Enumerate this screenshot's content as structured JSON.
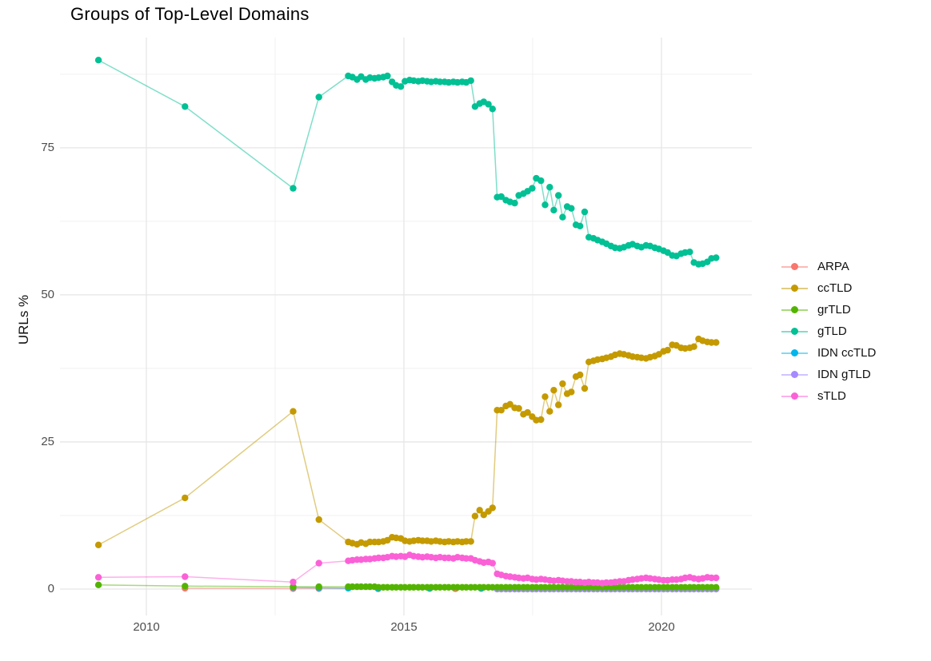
{
  "title": "Groups of Top-Level Domains",
  "y_axis": {
    "label": "URLs %",
    "tick_labels": [
      "0",
      "25",
      "50",
      "75"
    ]
  },
  "x_axis": {
    "tick_labels": [
      "2010",
      "2015",
      "2020"
    ]
  },
  "legend": {
    "position": "right",
    "items": [
      "ARPA",
      "ccTLD",
      "grTLD",
      "gTLD",
      "IDN ccTLD",
      "IDN gTLD",
      "sTLD"
    ]
  },
  "chart_data": {
    "type": "line",
    "title": "Groups of Top-Level Domains",
    "xlabel": "",
    "ylabel": "URLs %",
    "xlim": [
      2008.3,
      2021.75
    ],
    "ylim": [
      -4.5,
      93.7
    ],
    "grid": true,
    "legend_position": "right",
    "x_major_ticks": [
      2010,
      2015,
      2020
    ],
    "x_minor_gridlines": [
      2012.5,
      2017.5
    ],
    "y_major_ticks": [
      0,
      25,
      50,
      75
    ],
    "y_minor_gridlines": [
      12.5,
      37.5,
      62.5,
      87.5
    ],
    "x_sparse": [
      2009.07,
      2010.75,
      2012.85,
      2013.35
    ],
    "x_dense": [
      2013.92,
      2014.0,
      2014.09,
      2014.17,
      2014.26,
      2014.34,
      2014.43,
      2014.51,
      2014.6,
      2014.68,
      2014.77,
      2014.85,
      2014.94,
      2015.02,
      2015.11,
      2015.19,
      2015.28,
      2015.36,
      2015.45,
      2015.53,
      2015.62,
      2015.7,
      2015.79,
      2015.87,
      2015.96,
      2016.04,
      2016.13,
      2016.21,
      2016.3,
      2016.38,
      2016.47,
      2016.55,
      2016.64,
      2016.72,
      2016.81,
      2016.89,
      2016.98,
      2017.06,
      2017.15,
      2017.23,
      2017.32,
      2017.4,
      2017.49,
      2017.57,
      2017.66,
      2017.74,
      2017.83,
      2017.91,
      2018.0,
      2018.08,
      2018.17,
      2018.25,
      2018.34,
      2018.42,
      2018.51,
      2018.59,
      2018.68,
      2018.76,
      2018.85,
      2018.93,
      2019.02,
      2019.1,
      2019.19,
      2019.27,
      2019.36,
      2019.44,
      2019.53,
      2019.61,
      2019.7,
      2019.78,
      2019.87,
      2019.95,
      2020.04,
      2020.12,
      2020.21,
      2020.29,
      2020.38,
      2020.46,
      2020.55,
      2020.63,
      2020.72,
      2020.8,
      2020.89,
      2020.97,
      2021.06
    ],
    "draw_order": [
      "ARPA",
      "IDN ccTLD",
      "IDN gTLD",
      "grTLD",
      "ccTLD",
      "gTLD",
      "sTLD"
    ],
    "series": [
      {
        "name": "ARPA",
        "color": "#F8766D",
        "x": [
          2010.75,
          2012.85,
          2013.35,
          2014.5,
          2016.0,
          2017.5,
          2019.0,
          2021.06
        ],
        "y": [
          0.15,
          0.08,
          0.08,
          0.05,
          0.05,
          0.05,
          0.05,
          0.05
        ]
      },
      {
        "name": "ccTLD",
        "color": "#C49A00",
        "y_sparse": [
          7.5,
          15.5,
          30.2,
          11.8
        ],
        "y_dense": [
          8.0,
          7.8,
          7.6,
          7.9,
          7.7,
          8.0,
          8.0,
          8.0,
          8.1,
          8.3,
          8.8,
          8.7,
          8.6,
          8.2,
          8.1,
          8.2,
          8.3,
          8.2,
          8.2,
          8.1,
          8.2,
          8.1,
          8.0,
          8.1,
          8.0,
          8.1,
          8.0,
          8.1,
          8.1,
          12.4,
          13.4,
          12.6,
          13.2,
          13.8,
          30.4,
          30.4,
          31.1,
          31.4,
          30.8,
          30.7,
          29.7,
          30.0,
          29.3,
          28.7,
          28.8,
          32.7,
          30.2,
          33.8,
          31.3,
          34.9,
          33.2,
          33.5,
          36.1,
          36.4,
          34.1,
          38.6,
          38.8,
          39.0,
          39.1,
          39.3,
          39.5,
          39.8,
          40.0,
          39.9,
          39.7,
          39.5,
          39.4,
          39.3,
          39.2,
          39.4,
          39.6,
          39.9,
          40.4,
          40.6,
          41.5,
          41.4,
          41.0,
          40.9,
          41.0,
          41.2,
          42.5,
          42.2,
          42.0,
          41.9,
          41.9
        ]
      },
      {
        "name": "grTLD",
        "color": "#53B400",
        "y_sparse": [
          0.7,
          0.5,
          0.4,
          0.4
        ],
        "y_dense": [
          0.4,
          0.4,
          0.4,
          0.4,
          0.4,
          0.4,
          0.4,
          0.3,
          0.3,
          0.3,
          0.3,
          0.3,
          0.3,
          0.3,
          0.3,
          0.3,
          0.3,
          0.3,
          0.3,
          0.3,
          0.3,
          0.3,
          0.3,
          0.3,
          0.3,
          0.3,
          0.3,
          0.3,
          0.3,
          0.3,
          0.3,
          0.3,
          0.3,
          0.3,
          0.3,
          0.3,
          0.3,
          0.3,
          0.3,
          0.3,
          0.3,
          0.3,
          0.3,
          0.3,
          0.3,
          0.3,
          0.3,
          0.3,
          0.3,
          0.3,
          0.3,
          0.3,
          0.3,
          0.3,
          0.3,
          0.3,
          0.3,
          0.3,
          0.3,
          0.3,
          0.3,
          0.3,
          0.3,
          0.3,
          0.3,
          0.3,
          0.3,
          0.3,
          0.3,
          0.3,
          0.3,
          0.3,
          0.3,
          0.3,
          0.3,
          0.3,
          0.3,
          0.3,
          0.3,
          0.3,
          0.3,
          0.3,
          0.3,
          0.3,
          0.3
        ]
      },
      {
        "name": "gTLD",
        "color": "#00C094",
        "y_sparse": [
          89.9,
          82.0,
          68.1,
          83.6
        ],
        "y_dense": [
          87.2,
          87.0,
          86.6,
          87.1,
          86.6,
          86.9,
          86.8,
          86.9,
          87.0,
          87.2,
          86.2,
          85.6,
          85.4,
          86.3,
          86.5,
          86.4,
          86.3,
          86.4,
          86.3,
          86.2,
          86.3,
          86.2,
          86.2,
          86.1,
          86.2,
          86.1,
          86.2,
          86.1,
          86.4,
          82.0,
          82.5,
          82.8,
          82.4,
          81.6,
          66.6,
          66.7,
          66.1,
          65.8,
          65.6,
          66.9,
          67.2,
          67.6,
          68.1,
          69.8,
          69.4,
          65.3,
          68.3,
          64.4,
          66.9,
          63.2,
          65.0,
          64.7,
          61.9,
          61.7,
          64.1,
          59.8,
          59.6,
          59.3,
          59.0,
          58.7,
          58.3,
          58.0,
          57.9,
          58.1,
          58.4,
          58.6,
          58.3,
          58.1,
          58.4,
          58.3,
          58.0,
          57.8,
          57.5,
          57.2,
          56.7,
          56.6,
          57.0,
          57.2,
          57.3,
          55.5,
          55.2,
          55.3,
          55.6,
          56.2,
          56.3
        ]
      },
      {
        "name": "IDN ccTLD",
        "color": "#00B6EB",
        "x": [
          2012.85,
          2013.35,
          2013.92,
          2014.5,
          2015.5,
          2016.5,
          2017.5,
          2018.5,
          2019.5,
          2020.5,
          2021.06
        ],
        "y": [
          0.3,
          0.22,
          0.15,
          0.1,
          0.1,
          0.1,
          0.1,
          0.1,
          0.1,
          0.1,
          0.1
        ]
      },
      {
        "name": "IDN gTLD",
        "color": "#A58AFF",
        "x": [
          2016.81,
          2016.89,
          2016.98,
          2017.06,
          2017.15,
          2017.23,
          2017.32,
          2017.4,
          2017.49,
          2017.57,
          2017.66,
          2017.74,
          2017.83,
          2017.91,
          2018.0,
          2018.08,
          2018.17,
          2018.25,
          2018.34,
          2018.42,
          2018.51,
          2018.59,
          2018.68,
          2018.76,
          2018.85,
          2018.93,
          2019.02,
          2019.1,
          2019.19,
          2019.27,
          2019.36,
          2019.44,
          2019.53,
          2019.61,
          2019.7,
          2019.78,
          2019.87,
          2019.95,
          2020.04,
          2020.12,
          2020.21,
          2020.29,
          2020.38,
          2020.46,
          2020.55,
          2020.63,
          2020.72,
          2020.8,
          2020.89,
          2020.97,
          2021.06
        ],
        "y": [
          0,
          0,
          0,
          0,
          0,
          0,
          0,
          0,
          0,
          0,
          0,
          0,
          0,
          0,
          0,
          0,
          0,
          0,
          0,
          0,
          0,
          0,
          0,
          0,
          0,
          0,
          0,
          0,
          0,
          0,
          0,
          0,
          0,
          0,
          0,
          0,
          0,
          0,
          0,
          0,
          0,
          0,
          0,
          0,
          0,
          0,
          0,
          0,
          0,
          0,
          0
        ]
      },
      {
        "name": "sTLD",
        "color": "#FB61D7",
        "y_sparse": [
          2.0,
          2.1,
          1.2,
          4.4
        ],
        "y_dense": [
          4.8,
          4.9,
          5.0,
          5.0,
          5.1,
          5.1,
          5.2,
          5.3,
          5.3,
          5.4,
          5.6,
          5.5,
          5.6,
          5.5,
          5.8,
          5.6,
          5.5,
          5.4,
          5.5,
          5.4,
          5.3,
          5.4,
          5.3,
          5.3,
          5.2,
          5.4,
          5.3,
          5.2,
          5.2,
          4.9,
          4.7,
          4.5,
          4.6,
          4.4,
          2.6,
          2.4,
          2.2,
          2.1,
          2.0,
          1.9,
          1.8,
          1.9,
          1.7,
          1.6,
          1.7,
          1.6,
          1.5,
          1.4,
          1.5,
          1.4,
          1.3,
          1.3,
          1.2,
          1.2,
          1.1,
          1.2,
          1.1,
          1.1,
          1.0,
          1.1,
          1.1,
          1.2,
          1.3,
          1.3,
          1.5,
          1.6,
          1.7,
          1.8,
          1.9,
          1.8,
          1.7,
          1.6,
          1.5,
          1.5,
          1.6,
          1.6,
          1.7,
          1.9,
          2.0,
          1.8,
          1.7,
          1.8,
          2.0,
          1.9,
          1.9
        ]
      }
    ]
  },
  "style": {
    "grid_major_color": "#e6e6e6",
    "grid_minor_color": "#f0f0f0",
    "tick_label_color": "#4d4d4d"
  }
}
